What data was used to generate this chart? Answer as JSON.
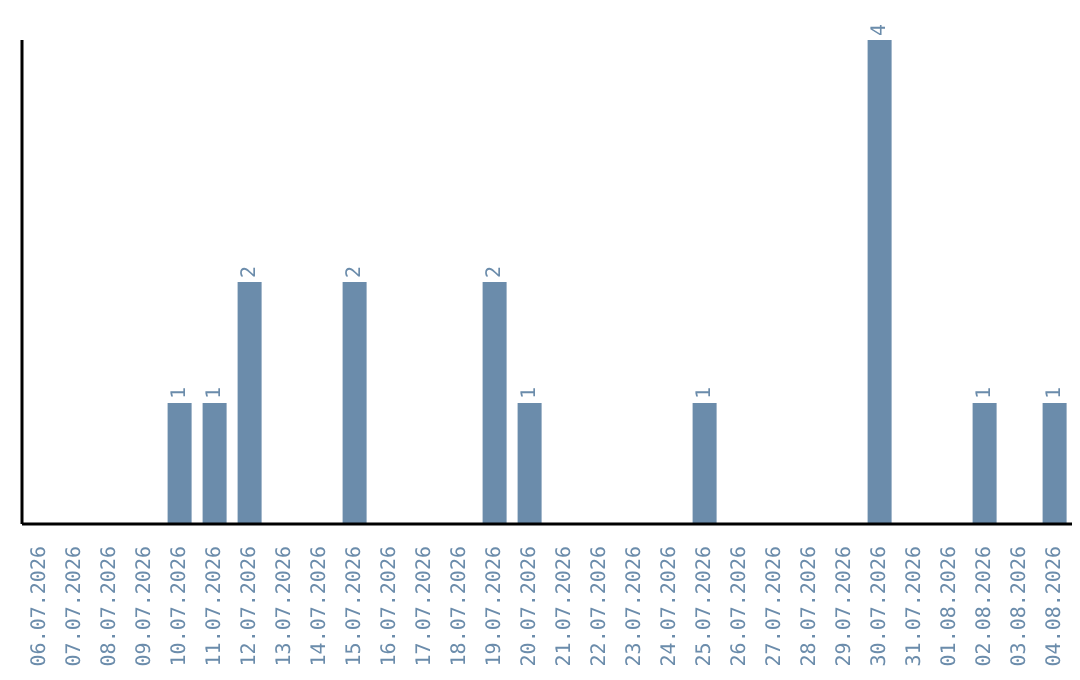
{
  "chart_data": {
    "type": "bar",
    "categories": [
      "06.07.2026",
      "07.07.2026",
      "08.07.2026",
      "09.07.2026",
      "10.07.2026",
      "11.07.2026",
      "12.07.2026",
      "13.07.2026",
      "14.07.2026",
      "15.07.2026",
      "16.07.2026",
      "17.07.2026",
      "18.07.2026",
      "19.07.2026",
      "20.07.2026",
      "21.07.2026",
      "22.07.2026",
      "23.07.2026",
      "24.07.2026",
      "25.07.2026",
      "26.07.2026",
      "27.07.2026",
      "28.07.2026",
      "29.07.2026",
      "30.07.2026",
      "31.07.2026",
      "01.08.2026",
      "02.08.2026",
      "03.08.2026",
      "04.08.2026"
    ],
    "values": [
      0,
      0,
      0,
      0,
      1,
      1,
      2,
      0,
      0,
      2,
      0,
      0,
      0,
      2,
      1,
      0,
      0,
      0,
      0,
      1,
      0,
      0,
      0,
      0,
      4,
      0,
      0,
      1,
      0,
      1
    ],
    "value_labels": [
      null,
      null,
      null,
      null,
      "1",
      "1",
      "2",
      null,
      null,
      "2",
      null,
      null,
      null,
      "2",
      "1",
      null,
      null,
      null,
      null,
      "1",
      null,
      null,
      null,
      null,
      "4",
      null,
      null,
      "1",
      null,
      "1"
    ],
    "color": "#6b8cab",
    "grid": false,
    "legend": false
  }
}
